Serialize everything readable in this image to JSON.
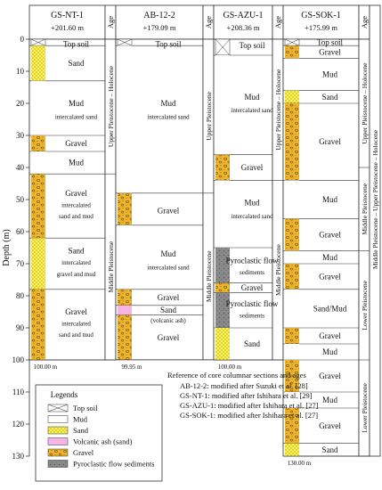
{
  "y_axis": {
    "label": "Depth (m)",
    "ticks": [
      0,
      10,
      20,
      30,
      40,
      50,
      60,
      70,
      80,
      90,
      100,
      110,
      120,
      130
    ],
    "range": [
      0,
      130
    ]
  },
  "columns": [
    {
      "id": "GS-NT-1",
      "name": "GS-NT-1",
      "elevation": "+201.60 m",
      "bottom_label": "100.00 m",
      "age_header": "Age",
      "lithology": [
        {
          "top": 0,
          "bottom": 2,
          "type": "topsoil"
        },
        {
          "top": 2,
          "bottom": 13,
          "type": "sand"
        },
        {
          "top": 13,
          "bottom": 30,
          "type": "mud"
        },
        {
          "top": 30,
          "bottom": 35,
          "type": "gravel"
        },
        {
          "top": 35,
          "bottom": 42,
          "type": "mud"
        },
        {
          "top": 42,
          "bottom": 62,
          "type": "gravel"
        },
        {
          "top": 62,
          "bottom": 78,
          "type": "sand"
        },
        {
          "top": 78,
          "bottom": 100,
          "type": "gravel"
        }
      ],
      "labels": [
        {
          "text": "Top soil",
          "depth": 1.5
        },
        {
          "text": "Sand",
          "depth": 7.5
        },
        {
          "text": "Mud",
          "depth": 20
        },
        {
          "text": "intercalated sand",
          "depth": 24
        },
        {
          "text": "Gravel",
          "depth": 32.5
        },
        {
          "text": "Mud",
          "depth": 38.5
        },
        {
          "text": "Gravel",
          "depth": 48
        },
        {
          "text": "intercalated",
          "depth": 51.5
        },
        {
          "text": "sand and mud",
          "depth": 55
        },
        {
          "text": "Sand",
          "depth": 66
        },
        {
          "text": "intercalated",
          "depth": 69.5
        },
        {
          "text": "gravel and mud",
          "depth": 73
        },
        {
          "text": "Gravel",
          "depth": 85
        },
        {
          "text": "intercalated",
          "depth": 88.5
        },
        {
          "text": "sand and mud",
          "depth": 92
        }
      ],
      "ages": [
        {
          "text": "Upper Pleistocene – Holocene",
          "top": 0,
          "bottom": 42
        },
        {
          "text": "Middle Pleistocene",
          "top": 42,
          "bottom": 100
        }
      ]
    },
    {
      "id": "AB-12-2",
      "name": "AB-12-2",
      "elevation": "+179.09 m",
      "bottom_label": "99.95 m",
      "age_header": "Age",
      "lithology": [
        {
          "top": 0,
          "bottom": 2,
          "type": "topsoil"
        },
        {
          "top": 2,
          "bottom": 48,
          "type": "mud"
        },
        {
          "top": 48,
          "bottom": 58,
          "type": "gravel"
        },
        {
          "top": 58,
          "bottom": 78,
          "type": "mud"
        },
        {
          "top": 78,
          "bottom": 83,
          "type": "gravel"
        },
        {
          "top": 83,
          "bottom": 86,
          "type": "ash"
        },
        {
          "top": 86,
          "bottom": 99.95,
          "type": "gravel"
        }
      ],
      "labels": [
        {
          "text": "Top soil",
          "depth": 1.5
        },
        {
          "text": "Mud",
          "depth": 20
        },
        {
          "text": "intercalated sand",
          "depth": 24
        },
        {
          "text": "Gravel",
          "depth": 53.5
        },
        {
          "text": "Mud",
          "depth": 67
        },
        {
          "text": "intercalated sand",
          "depth": 71
        },
        {
          "text": "Gravel",
          "depth": 80.5
        },
        {
          "text": "Sand",
          "depth": 84.5
        },
        {
          "text": "(volcanic ash)",
          "depth": 87.5
        },
        {
          "text": "Gravel",
          "depth": 93
        }
      ],
      "ages": [
        {
          "text": "Upper Pleistocene",
          "top": 0,
          "bottom": 48
        },
        {
          "text": "Middle Pleistocene",
          "top": 48,
          "bottom": 100
        }
      ]
    },
    {
      "id": "GS-AZU-1",
      "name": "GS-AZU-1",
      "elevation": "+208.36 m",
      "bottom_label": "100.00 m",
      "age_header": "Age",
      "lithology": [
        {
          "top": 0,
          "bottom": 5,
          "type": "topsoil"
        },
        {
          "top": 5,
          "bottom": 36,
          "type": "mud"
        },
        {
          "top": 36,
          "bottom": 44,
          "type": "gravel"
        },
        {
          "top": 44,
          "bottom": 65,
          "type": "mud"
        },
        {
          "top": 65,
          "bottom": 76,
          "type": "pyroclastic"
        },
        {
          "top": 76,
          "bottom": 79,
          "type": "gravel"
        },
        {
          "top": 79,
          "bottom": 90,
          "type": "pyroclastic"
        },
        {
          "top": 90,
          "bottom": 100,
          "type": "sand"
        }
      ],
      "labels": [
        {
          "text": "Top soil",
          "depth": 2
        },
        {
          "text": "Mud",
          "depth": 18
        },
        {
          "text": "intercalated sand",
          "depth": 22
        },
        {
          "text": "Gravel",
          "depth": 40
        },
        {
          "text": "Mud",
          "depth": 51
        },
        {
          "text": "intercalated sand",
          "depth": 55
        },
        {
          "text": "Pyroclastic flow",
          "depth": 69
        },
        {
          "text": "sediments",
          "depth": 72.5
        },
        {
          "text": "Gravel",
          "depth": 77.5
        },
        {
          "text": "Pyroclastic flow",
          "depth": 82.5
        },
        {
          "text": "sediments",
          "depth": 86
        },
        {
          "text": "Sand",
          "depth": 95
        }
      ],
      "ages": [
        {
          "text": "Upper Pleistocene – Holocene",
          "top": 0,
          "bottom": 44
        },
        {
          "text": "Middle Pleistocene",
          "top": 44,
          "bottom": 100
        }
      ]
    },
    {
      "id": "GS-SOK-1",
      "name": "GS-SOK-1",
      "elevation": "+175.99 m",
      "bottom_label": "130.00 m",
      "age_header": "Age",
      "lithology": [
        {
          "top": 0,
          "bottom": 2,
          "type": "topsoil"
        },
        {
          "top": 2,
          "bottom": 6,
          "type": "gravel"
        },
        {
          "top": 6,
          "bottom": 16,
          "type": "mud"
        },
        {
          "top": 16,
          "bottom": 20,
          "type": "sand"
        },
        {
          "top": 20,
          "bottom": 44,
          "type": "gravel"
        },
        {
          "top": 44,
          "bottom": 56,
          "type": "mud"
        },
        {
          "top": 56,
          "bottom": 66,
          "type": "gravel"
        },
        {
          "top": 66,
          "bottom": 70,
          "type": "mud"
        },
        {
          "top": 70,
          "bottom": 78,
          "type": "gravel"
        },
        {
          "top": 78,
          "bottom": 90,
          "type": "mud"
        },
        {
          "top": 90,
          "bottom": 95,
          "type": "gravel"
        },
        {
          "top": 95,
          "bottom": 100,
          "type": "mud"
        },
        {
          "top": 100,
          "bottom": 110,
          "type": "gravel"
        },
        {
          "top": 110,
          "bottom": 115,
          "type": "mud"
        },
        {
          "top": 115,
          "bottom": 126,
          "type": "gravel"
        },
        {
          "top": 126,
          "bottom": 130,
          "type": "sand"
        }
      ],
      "labels": [
        {
          "text": "Top soil",
          "depth": 1
        },
        {
          "text": "Gravel",
          "depth": 4
        },
        {
          "text": "Mud",
          "depth": 11
        },
        {
          "text": "Sand",
          "depth": 18
        },
        {
          "text": "Gravel",
          "depth": 32
        },
        {
          "text": "Mud",
          "depth": 50
        },
        {
          "text": "Gravel",
          "depth": 61
        },
        {
          "text": "Mud",
          "depth": 68
        },
        {
          "text": "Gravel",
          "depth": 74
        },
        {
          "text": "Sand/Mud",
          "depth": 84
        },
        {
          "text": "Gravel",
          "depth": 92.5
        },
        {
          "text": "Mud",
          "depth": 97.5
        },
        {
          "text": "Gravel",
          "depth": 105
        },
        {
          "text": "Mud",
          "depth": 112.5
        },
        {
          "text": "Gravel",
          "depth": 120.5
        },
        {
          "text": "Sand",
          "depth": 128
        }
      ],
      "ages": [
        {
          "text": "Upper Pleistocene – Holocene",
          "top": 0,
          "bottom": 40
        },
        {
          "text": "Middle Pleistocene",
          "top": 40,
          "bottom": 66
        },
        {
          "text": "Lower Pleistocene",
          "top": 66,
          "bottom": 100
        },
        {
          "text": "Lower Pleistocene",
          "top": 100,
          "bottom": 130
        }
      ],
      "outer_age": {
        "text": "Middle Pleistocene – Upper Pleistocene – Holocene",
        "top": 0,
        "bottom": 100
      }
    }
  ],
  "legend": {
    "title": "Legends",
    "items": [
      {
        "type": "topsoil",
        "label": "Top soil"
      },
      {
        "type": "mud",
        "label": "Mud"
      },
      {
        "type": "sand",
        "label": "Sand"
      },
      {
        "type": "ash",
        "label": "Volcanic ash (sand)"
      },
      {
        "type": "gravel",
        "label": "Gravel"
      },
      {
        "type": "pyroclastic",
        "label": "Pyroclastic flow sediments"
      }
    ]
  },
  "references": {
    "title": "Reference of core columnar sections and ages",
    "lines": [
      "AB-12-2: modified after Suzuki et al. [28]",
      "GS-NT-1: modified after Ishihara et al. [29]",
      "GS-AZU-1: modified after Ishihara et al. [27]",
      "GS-SOK-1: modified after Ishihara et al. [27]"
    ]
  },
  "colors": {
    "sand": "#fff24a",
    "gravel": "#f0b429",
    "ash": "#f5b5e6",
    "pyroclastic": "#8a8a8a",
    "mud": "#ffffff",
    "line": "#333333"
  }
}
